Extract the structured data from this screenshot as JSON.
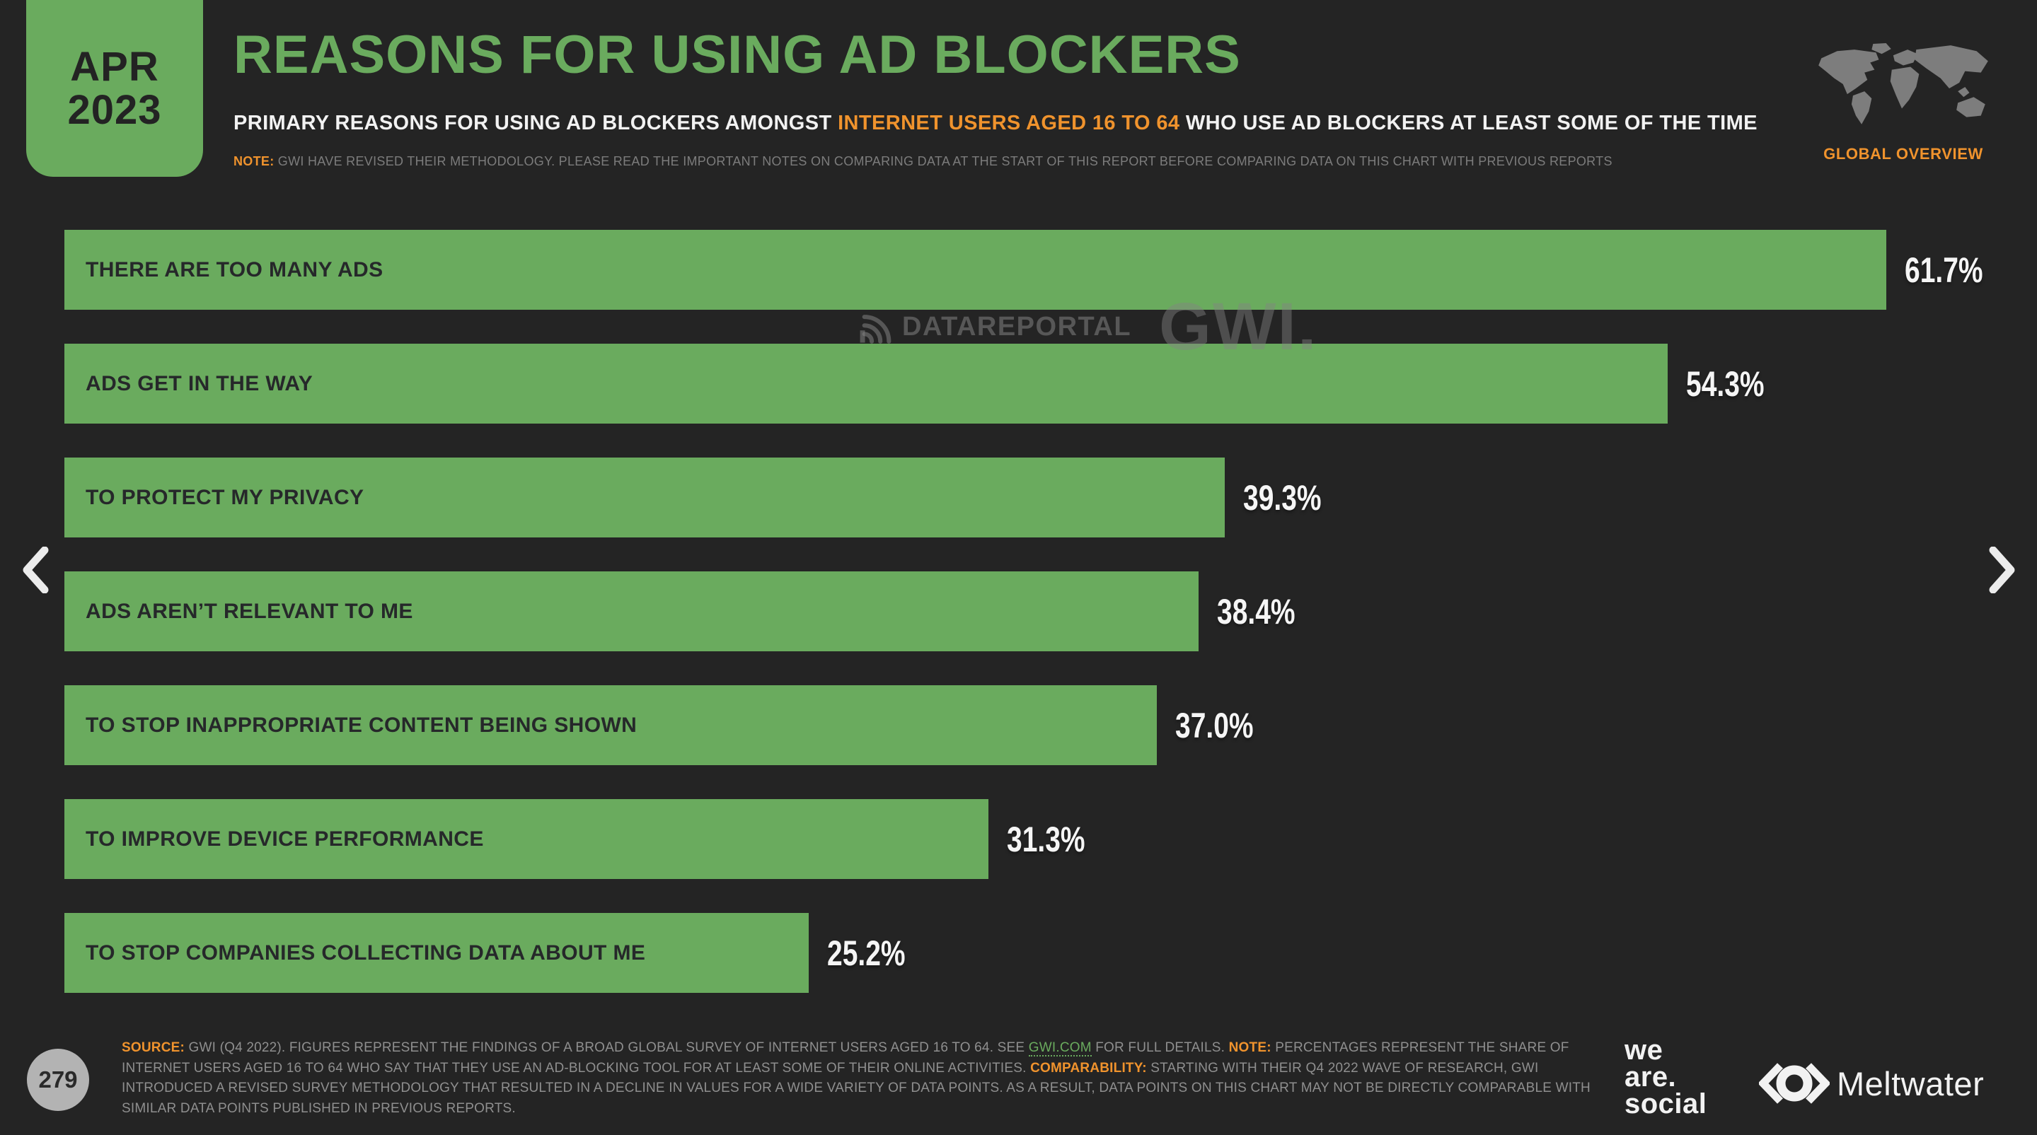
{
  "colors": {
    "background": "#242424",
    "accent_green": "#6aab5e",
    "accent_orange": "#f0932d",
    "bar_label_dark": "#26282a",
    "footer_gray": "#8f8f8f",
    "map_gray": "#7d7d7d"
  },
  "header": {
    "date_month": "APR",
    "date_year": "2023",
    "title": "REASONS FOR USING AD BLOCKERS",
    "subtitle_prefix": "PRIMARY REASONS FOR USING AD BLOCKERS AMONGST ",
    "subtitle_highlight": "INTERNET USERS AGED 16 TO 64",
    "subtitle_suffix": " WHO USE AD BLOCKERS AT LEAST SOME OF THE TIME",
    "note_label": "NOTE:",
    "note_text": " GWI HAVE REVISED THEIR METHODOLOGY. PLEASE READ THE IMPORTANT NOTES ON COMPARING DATA AT THE START OF THIS REPORT BEFORE COMPARING DATA ON THIS CHART WITH PREVIOUS REPORTS",
    "global_overview_label": "GLOBAL OVERVIEW"
  },
  "chart_data": {
    "type": "bar",
    "orientation": "horizontal",
    "title": "REASONS FOR USING AD BLOCKERS",
    "xlabel": "",
    "ylabel": "",
    "xlim": [
      0,
      65
    ],
    "grid": false,
    "bar_color": "#6aab5e",
    "categories": [
      "THERE ARE TOO MANY ADS",
      "ADS GET IN THE WAY",
      "TO PROTECT MY PRIVACY",
      "ADS AREN’T RELEVANT TO ME",
      "TO STOP INAPPROPRIATE CONTENT BEING SHOWN",
      "TO IMPROVE DEVICE PERFORMANCE",
      "TO STOP COMPANIES COLLECTING DATA ABOUT ME"
    ],
    "values": [
      61.7,
      54.3,
      39.3,
      38.4,
      37.0,
      31.3,
      25.2
    ],
    "value_labels": [
      "61.7%",
      "54.3%",
      "39.3%",
      "38.4%",
      "37.0%",
      "31.3%",
      "25.2%"
    ]
  },
  "watermark": {
    "datareportal": "DATAREPORTAL",
    "gwi": "GWI."
  },
  "footer": {
    "page_number": "279",
    "source_label": "SOURCE:",
    "s1": " GWI (Q4 2022). FIGURES REPRESENT THE FINDINGS OF A BROAD GLOBAL SURVEY OF INTERNET USERS AGED 16 TO 64. SEE ",
    "link": "GWI.COM",
    "s2": " FOR FULL DETAILS. ",
    "note_label": "NOTE:",
    "s3": " PERCENTAGES REPRESENT THE SHARE OF INTERNET USERS AGED 16 TO 64 WHO SAY THAT THEY USE AN AD-BLOCKING TOOL FOR AT LEAST SOME OF THEIR ONLINE ACTIVITIES. ",
    "comparability_label": "COMPARABILITY:",
    "s4": " STARTING WITH THEIR Q4 2022 WAVE OF RESEARCH, GWI INTRODUCED A REVISED SURVEY METHODOLOGY THAT RESULTED IN A DECLINE IN VALUES FOR A WIDE VARIETY OF DATA POINTS. AS A RESULT, DATA POINTS ON THIS CHART MAY NOT BE DIRECTLY COMPARABLE WITH SIMILAR DATA POINTS PUBLISHED IN PREVIOUS REPORTS.",
    "we_are_social_lines": [
      "we",
      "are.",
      "social"
    ],
    "meltwater": "Meltwater"
  }
}
